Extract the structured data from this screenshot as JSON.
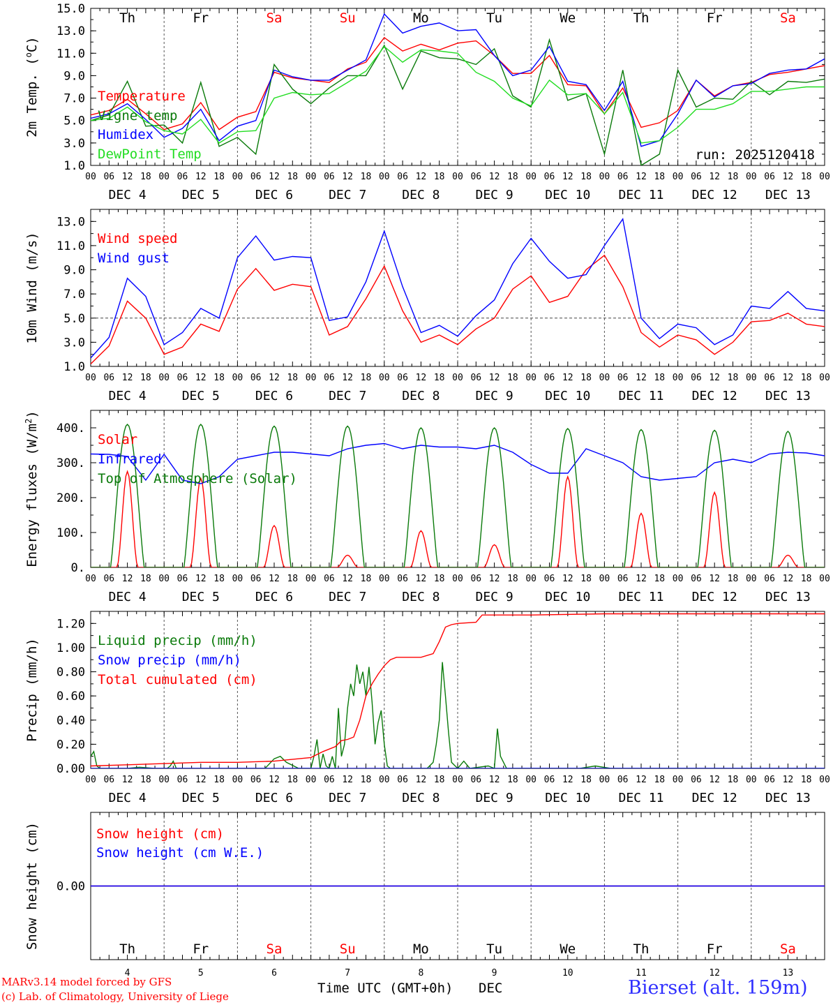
{
  "footer": {
    "model": "MARv3.14 model forced by GFS",
    "lab": "(c) Lab. of Climatology, University of Liege",
    "axis_title": "Time UTC (GMT+0h)",
    "axis_unit": "DEC",
    "station": "Bierset (alt. 159m)"
  },
  "colors": {
    "red": "#ff0000",
    "green": "#008000",
    "blue": "#0000ff",
    "lime": "#00e000",
    "weekend": "#ff0000",
    "weekday": "#000000"
  },
  "days": [
    {
      "abbr": "Th",
      "num": "4",
      "weekend": false
    },
    {
      "abbr": "Fr",
      "num": "5",
      "weekend": false
    },
    {
      "abbr": "Sa",
      "num": "6",
      "weekend": true
    },
    {
      "abbr": "Su",
      "num": "7",
      "weekend": true
    },
    {
      "abbr": "Mo",
      "num": "8",
      "weekend": false
    },
    {
      "abbr": "Tu",
      "num": "9",
      "weekend": false
    },
    {
      "abbr": "We",
      "num": "10",
      "weekend": false
    },
    {
      "abbr": "Th",
      "num": "11",
      "weekend": false
    },
    {
      "abbr": "Fr",
      "num": "12",
      "weekend": false
    },
    {
      "abbr": "Sa",
      "num": "13",
      "weekend": true
    }
  ],
  "hour_ticks": [
    "00",
    "06",
    "12",
    "18"
  ],
  "month_label": "DEC",
  "chart_data": [
    {
      "type": "line",
      "id": "temp",
      "ylabel": "2m Temp. (oC)",
      "ylabel_unit_sup": "o",
      "ylim": [
        1,
        15
      ],
      "yticks": [
        "1.0",
        "3.0",
        "5.0",
        "7.0",
        "9.0",
        "11.0",
        "13.0",
        "15.0"
      ],
      "annotation": "run: 2025120418",
      "xlabel": "",
      "x_hours": [
        0,
        6,
        12,
        18,
        24,
        30,
        36,
        42,
        48,
        54,
        60,
        66,
        72,
        78,
        84,
        90,
        96,
        102,
        108,
        114,
        120,
        126,
        132,
        138,
        144,
        150,
        156,
        162,
        168,
        174,
        180,
        186,
        192,
        198,
        204,
        210,
        216,
        222,
        228,
        234,
        240
      ],
      "series": [
        {
          "name": "Temperature",
          "color": "red",
          "values": [
            5.5,
            5.9,
            6.9,
            5.6,
            4.2,
            4.7,
            6.6,
            4.2,
            5.3,
            5.8,
            9.3,
            8.8,
            8.6,
            8.4,
            9.6,
            10.2,
            12.4,
            11.2,
            11.8,
            11.3,
            11.9,
            12.1,
            10.8,
            9.2,
            9.2,
            10.8,
            8.2,
            8.1,
            5.6,
            7.9,
            4.4,
            4.8,
            5.9,
            8.6,
            7.2,
            8.1,
            8.4,
            9.1,
            9.3,
            9.6,
            9.9
          ]
        },
        {
          "name": "Vigne temp",
          "color": "green",
          "values": [
            5.0,
            5.5,
            8.5,
            4.5,
            4.6,
            3.0,
            8.4,
            2.7,
            3.5,
            2.0,
            10.0,
            7.8,
            6.5,
            7.9,
            9.0,
            9.0,
            11.7,
            7.8,
            11.2,
            10.6,
            10.5,
            10.0,
            11.4,
            7.2,
            6.2,
            12.2,
            6.8,
            7.4,
            2.0,
            9.5,
            1.0,
            2.0,
            9.5,
            6.2,
            7.0,
            6.9,
            8.5,
            7.3,
            8.5,
            8.4,
            8.7
          ]
        },
        {
          "name": "Humidex",
          "color": "blue",
          "values": [
            5.2,
            5.6,
            6.5,
            5.1,
            3.5,
            4.3,
            6.0,
            3.2,
            4.5,
            5.0,
            9.5,
            8.9,
            8.6,
            8.6,
            9.5,
            10.4,
            14.5,
            12.8,
            13.4,
            13.7,
            13.0,
            13.1,
            10.8,
            9.0,
            9.5,
            11.6,
            8.5,
            8.2,
            5.9,
            8.5,
            2.7,
            3.2,
            5.6,
            8.6,
            7.1,
            8.1,
            8.3,
            9.2,
            9.5,
            9.6,
            10.5
          ]
        },
        {
          "name": "DewPoint Temp",
          "color": "lime",
          "values": [
            5.0,
            5.2,
            6.2,
            4.9,
            4.1,
            3.8,
            5.1,
            3.0,
            4.0,
            4.1,
            7.0,
            7.5,
            7.3,
            7.4,
            8.4,
            9.4,
            11.6,
            10.2,
            11.3,
            11.2,
            11.0,
            9.3,
            8.5,
            7.0,
            6.3,
            8.6,
            7.3,
            7.4,
            5.6,
            7.5,
            3.0,
            3.2,
            4.4,
            6.0,
            6.0,
            6.5,
            7.6,
            7.6,
            7.8,
            8.0,
            8.0
          ]
        }
      ]
    },
    {
      "type": "line",
      "id": "wind",
      "ylabel": "10m Wind (m/s)",
      "ylim": [
        1,
        14
      ],
      "yticks": [
        "1.0",
        "3.0",
        "5.0",
        "7.0",
        "9.0",
        "11.0",
        "13.0"
      ],
      "reference_line": 5.0,
      "xlabel": "",
      "x_hours": [
        0,
        6,
        12,
        18,
        24,
        30,
        36,
        42,
        48,
        54,
        60,
        66,
        72,
        78,
        84,
        90,
        96,
        102,
        108,
        114,
        120,
        126,
        132,
        138,
        144,
        150,
        156,
        162,
        168,
        174,
        180,
        186,
        192,
        198,
        204,
        210,
        216,
        222,
        228,
        234,
        240
      ],
      "series": [
        {
          "name": "Wind speed",
          "color": "red",
          "values": [
            1.2,
            2.7,
            6.4,
            5.0,
            2.0,
            2.6,
            4.5,
            3.9,
            7.4,
            9.1,
            7.3,
            7.8,
            7.6,
            3.6,
            4.3,
            6.6,
            9.3,
            5.6,
            3.0,
            3.6,
            2.8,
            4.1,
            5.0,
            7.4,
            8.5,
            6.3,
            6.8,
            9.0,
            10.2,
            7.6,
            3.8,
            2.6,
            3.6,
            3.2,
            2.0,
            3.0,
            4.7,
            4.8,
            5.4,
            4.5,
            4.3
          ]
        },
        {
          "name": "Wind gust",
          "color": "blue",
          "values": [
            1.7,
            3.4,
            8.3,
            6.8,
            2.8,
            3.8,
            5.8,
            5.0,
            10.0,
            11.8,
            9.8,
            10.1,
            10.0,
            4.8,
            5.1,
            8.0,
            12.2,
            7.6,
            3.8,
            4.4,
            3.5,
            5.2,
            6.5,
            9.5,
            11.6,
            9.7,
            8.3,
            8.6,
            11.0,
            13.2,
            5.0,
            3.3,
            4.5,
            4.2,
            2.8,
            3.6,
            6.0,
            5.8,
            7.2,
            5.8,
            5.6
          ]
        }
      ]
    },
    {
      "type": "line",
      "id": "flux",
      "ylabel": "Energy fluxes (W/m2)",
      "ylim": [
        0,
        450
      ],
      "yticks": [
        "0.",
        "100.",
        "200.",
        "300.",
        "400."
      ],
      "xlabel": "",
      "x_hours": [
        0,
        6,
        12,
        18,
        24,
        30,
        36,
        42,
        48,
        54,
        60,
        66,
        72,
        78,
        84,
        90,
        96,
        102,
        108,
        114,
        120,
        126,
        132,
        138,
        144,
        150,
        156,
        162,
        168,
        174,
        180,
        186,
        192,
        198,
        204,
        210,
        216,
        222,
        228,
        234,
        240
      ],
      "series": [
        {
          "name": "Solar",
          "color": "red",
          "peaks": [
            [
              0,
              275
            ],
            [
              1,
              255
            ],
            [
              2,
              120
            ],
            [
              3,
              35
            ],
            [
              4,
              105
            ],
            [
              5,
              65
            ],
            [
              6,
              260
            ],
            [
              7,
              155
            ],
            [
              8,
              215
            ],
            [
              9,
              35
            ]
          ]
        },
        {
          "name": "Infrared",
          "color": "blue",
          "values": [
            325,
            324,
            318,
            250,
            324,
            250,
            240,
            260,
            310,
            320,
            330,
            330,
            325,
            320,
            340,
            350,
            355,
            340,
            350,
            345,
            345,
            340,
            350,
            330,
            295,
            270,
            270,
            340,
            320,
            300,
            260,
            250,
            255,
            260,
            300,
            310,
            300,
            325,
            330,
            328,
            320
          ]
        },
        {
          "name": "Top of Atmosphere (Solar)",
          "color": "green",
          "peaks": [
            [
              0,
              410
            ],
            [
              1,
              410
            ],
            [
              2,
              405
            ],
            [
              3,
              405
            ],
            [
              4,
              400
            ],
            [
              5,
              400
            ],
            [
              6,
              398
            ],
            [
              7,
              395
            ],
            [
              8,
              393
            ],
            [
              9,
              390
            ]
          ]
        }
      ]
    },
    {
      "type": "line",
      "id": "precip",
      "ylabel": "Precip (mm/h)",
      "ylim": [
        0,
        1.3
      ],
      "yticks": [
        "0.00",
        "0.20",
        "0.40",
        "0.60",
        "0.80",
        "1.00",
        "1.20"
      ],
      "xlabel": "",
      "series": [
        {
          "name": "Liquid precip (mm/h)",
          "color": "green",
          "x_hours": [
            0,
            1,
            2,
            3,
            6,
            12,
            16,
            21,
            25,
            26,
            27,
            28,
            33,
            36,
            39,
            43,
            48,
            54,
            57,
            60,
            62,
            64,
            68,
            72,
            73,
            74,
            75,
            76,
            77,
            78,
            79,
            80,
            81,
            82,
            83,
            84,
            85,
            86,
            87,
            88,
            89,
            90,
            91,
            92,
            93,
            94,
            95,
            96,
            97,
            98,
            99,
            100,
            101,
            102,
            104,
            108,
            110,
            112,
            113,
            114,
            115,
            116,
            117,
            118,
            120,
            122,
            124,
            130,
            132,
            133,
            134,
            136,
            138,
            160,
            165,
            170,
            180,
            240
          ],
          "values": [
            0.1,
            0.14,
            0.02,
            0.0,
            0.0,
            0.0,
            0.01,
            0.0,
            0.0,
            0.02,
            0.06,
            0.0,
            0.0,
            0.0,
            0.0,
            0.0,
            0.0,
            0.0,
            0.0,
            0.08,
            0.1,
            0.05,
            0.0,
            0.0,
            0.1,
            0.24,
            0.0,
            0.12,
            0.02,
            0.0,
            0.1,
            0.0,
            0.5,
            0.1,
            0.2,
            0.5,
            0.7,
            0.6,
            0.86,
            0.7,
            0.8,
            0.6,
            0.84,
            0.55,
            0.2,
            0.38,
            0.48,
            0.2,
            0.02,
            0.0,
            0.0,
            0.0,
            0.0,
            0.0,
            0.0,
            0.0,
            0.0,
            0.05,
            0.2,
            0.4,
            0.88,
            0.6,
            0.3,
            0.05,
            0.0,
            0.06,
            0.0,
            0.02,
            0.0,
            0.33,
            0.1,
            0.0,
            0.0,
            0.0,
            0.02,
            0.0,
            0.0,
            0.0
          ]
        },
        {
          "name": "Snow precip (mm/h)",
          "color": "blue",
          "x_hours": [
            0,
            240
          ],
          "values": [
            0.0,
            0.0
          ]
        },
        {
          "name": "Total cumulated (cm)",
          "color": "red",
          "x_hours": [
            0,
            12,
            24,
            36,
            48,
            60,
            72,
            76,
            80,
            82,
            84,
            86,
            88,
            90,
            92,
            94,
            96,
            98,
            100,
            104,
            108,
            112,
            114,
            116,
            118,
            120,
            126,
            128,
            132,
            144,
            168,
            240
          ],
          "values": [
            0.02,
            0.03,
            0.04,
            0.05,
            0.05,
            0.06,
            0.09,
            0.14,
            0.18,
            0.23,
            0.24,
            0.26,
            0.4,
            0.6,
            0.7,
            0.78,
            0.85,
            0.9,
            0.92,
            0.92,
            0.92,
            0.95,
            1.05,
            1.17,
            1.19,
            1.2,
            1.21,
            1.27,
            1.27,
            1.27,
            1.28,
            1.28
          ]
        }
      ]
    },
    {
      "type": "line",
      "id": "snow",
      "ylabel": "Snow height (cm)",
      "ylim": [
        -1,
        1
      ],
      "yticks": [
        "0.00"
      ],
      "xlabel": "Time UTC (GMT+0h)",
      "series": [
        {
          "name": "Snow height (cm)",
          "color": "red",
          "x_hours": [
            0,
            240
          ],
          "values": [
            0,
            0
          ]
        },
        {
          "name": "Snow height (cm W.E.)",
          "color": "blue",
          "x_hours": [
            0,
            240
          ],
          "values": [
            0,
            0
          ]
        }
      ]
    }
  ]
}
